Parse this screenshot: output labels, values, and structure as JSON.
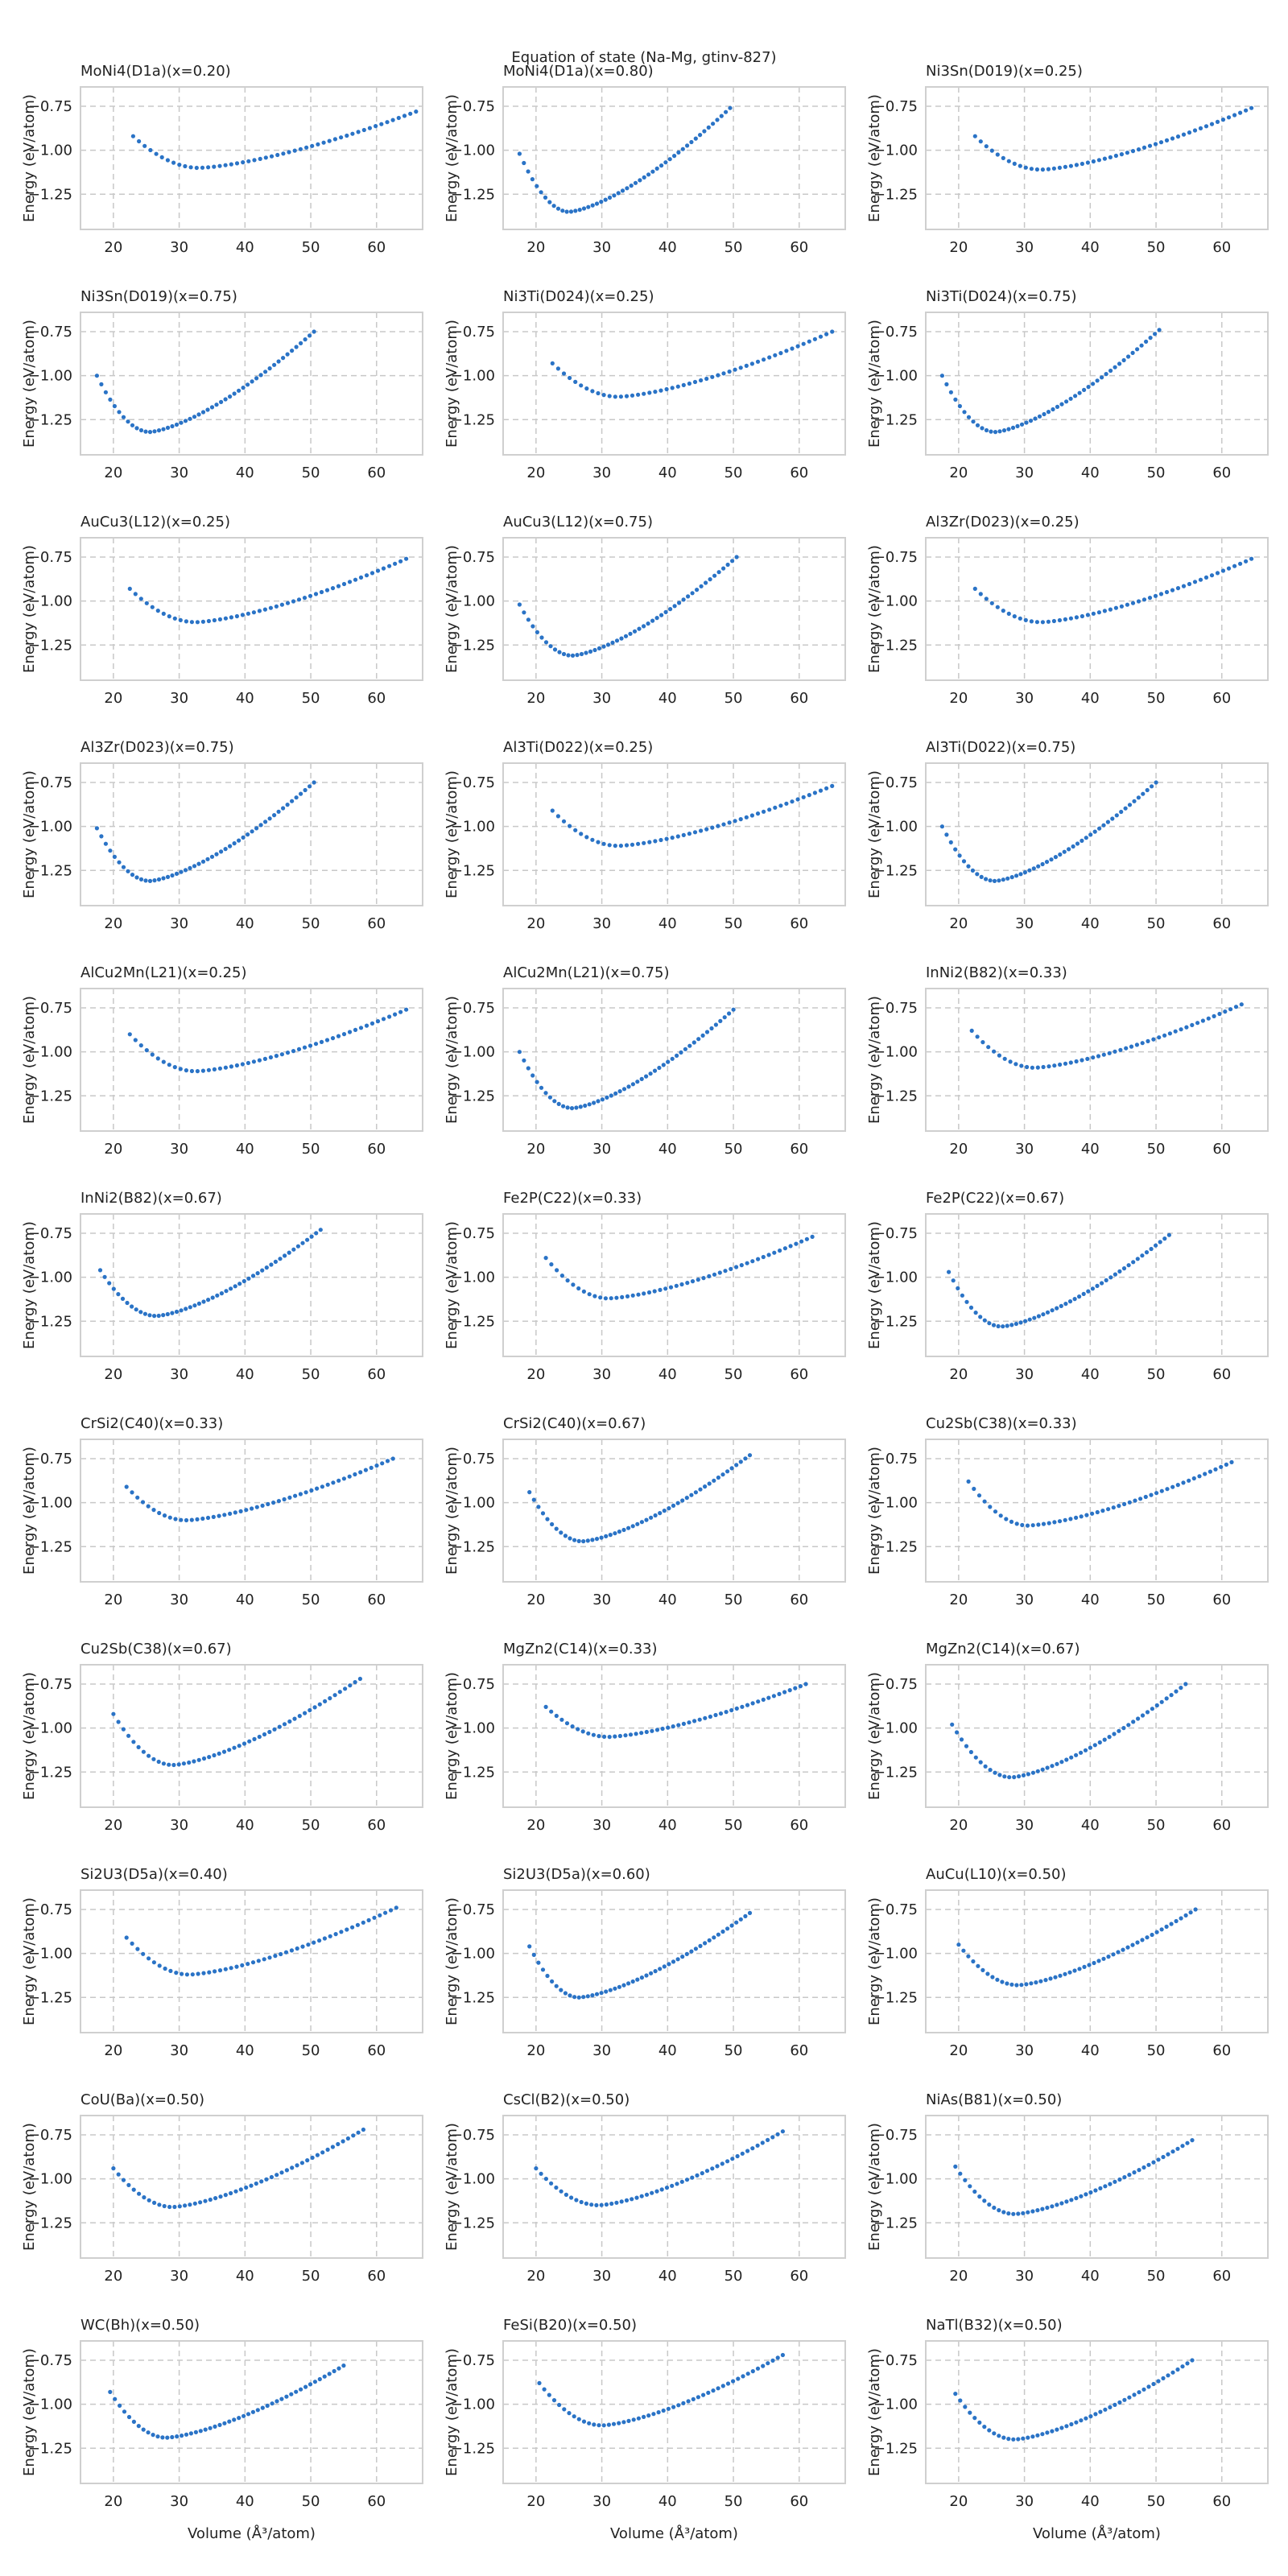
{
  "figure": {
    "title": "Equation of state (Na-Mg, gtinv-827)"
  },
  "chart_data": {
    "type": "scatter",
    "layout": "grid 11 rows x 3 columns",
    "series_color": "#2a73c6",
    "grid": true,
    "grid_style": "dashed",
    "xlabel": "Volume (Å³/atom)",
    "ylabel": "Energy (eV/atom)",
    "xlim": [
      15,
      67
    ],
    "ylim": [
      -1.45,
      -0.64
    ],
    "xticks": [
      20,
      30,
      40,
      50,
      60
    ],
    "yticks": [
      -0.75,
      -1.0,
      -1.25
    ],
    "xtick_labels": [
      "20",
      "30",
      "40",
      "50",
      "60"
    ],
    "ytick_labels": [
      "−0.75",
      "−1.00",
      "−1.25"
    ],
    "panels": [
      {
        "title": "MoNi4(D1a)(x=0.20)",
        "x_start": 23.0,
        "x_end": 66.0,
        "y_start": -0.92,
        "y_end": -0.78,
        "x_min": 33.0,
        "y_min": -1.1
      },
      {
        "title": "MoNi4(D1a)(x=0.80)",
        "x_start": 17.5,
        "x_end": 49.5,
        "y_start": -1.02,
        "y_end": -0.76,
        "x_min": 25.0,
        "y_min": -1.35
      },
      {
        "title": "Ni3Sn(D019)(x=0.25)",
        "x_start": 22.5,
        "x_end": 64.5,
        "y_start": -0.92,
        "y_end": -0.76,
        "x_min": 32.5,
        "y_min": -1.11
      },
      {
        "title": "Ni3Sn(D019)(x=0.75)",
        "x_start": 17.5,
        "x_end": 50.5,
        "y_start": -1.0,
        "y_end": -0.75,
        "x_min": 25.5,
        "y_min": -1.32
      },
      {
        "title": "Ni3Ti(D024)(x=0.25)",
        "x_start": 22.5,
        "x_end": 65.0,
        "y_start": -0.93,
        "y_end": -0.75,
        "x_min": 32.5,
        "y_min": -1.12
      },
      {
        "title": "Ni3Ti(D024)(x=0.75)",
        "x_start": 17.5,
        "x_end": 50.5,
        "y_start": -1.0,
        "y_end": -0.74,
        "x_min": 25.5,
        "y_min": -1.32
      },
      {
        "title": "AuCu3(L12)(x=0.25)",
        "x_start": 22.5,
        "x_end": 64.5,
        "y_start": -0.93,
        "y_end": -0.76,
        "x_min": 32.5,
        "y_min": -1.12
      },
      {
        "title": "AuCu3(L12)(x=0.75)",
        "x_start": 17.5,
        "x_end": 50.5,
        "y_start": -1.02,
        "y_end": -0.75,
        "x_min": 25.5,
        "y_min": -1.31
      },
      {
        "title": "Al3Zr(D023)(x=0.25)",
        "x_start": 22.5,
        "x_end": 64.5,
        "y_start": -0.93,
        "y_end": -0.76,
        "x_min": 32.5,
        "y_min": -1.12
      },
      {
        "title": "Al3Zr(D023)(x=0.75)",
        "x_start": 17.5,
        "x_end": 50.5,
        "y_start": -1.01,
        "y_end": -0.75,
        "x_min": 25.5,
        "y_min": -1.31
      },
      {
        "title": "Al3Ti(D022)(x=0.25)",
        "x_start": 22.5,
        "x_end": 65.0,
        "y_start": -0.91,
        "y_end": -0.77,
        "x_min": 32.5,
        "y_min": -1.11
      },
      {
        "title": "Al3Ti(D022)(x=0.75)",
        "x_start": 17.5,
        "x_end": 50.0,
        "y_start": -1.0,
        "y_end": -0.75,
        "x_min": 25.5,
        "y_min": -1.31
      },
      {
        "title": "AlCu2Mn(L21)(x=0.25)",
        "x_start": 22.5,
        "x_end": 64.5,
        "y_start": -0.9,
        "y_end": -0.76,
        "x_min": 32.5,
        "y_min": -1.11
      },
      {
        "title": "AlCu2Mn(L21)(x=0.75)",
        "x_start": 17.5,
        "x_end": 50.0,
        "y_start": -1.0,
        "y_end": -0.76,
        "x_min": 25.5,
        "y_min": -1.32
      },
      {
        "title": "InNi2(B82)(x=0.33)",
        "x_start": 22.0,
        "x_end": 63.0,
        "y_start": -0.88,
        "y_end": -0.73,
        "x_min": 31.5,
        "y_min": -1.09
      },
      {
        "title": "InNi2(B82)(x=0.67)",
        "x_start": 18.0,
        "x_end": 51.5,
        "y_start": -0.96,
        "y_end": -0.73,
        "x_min": 26.5,
        "y_min": -1.22
      },
      {
        "title": "Fe2P(C22)(x=0.33)",
        "x_start": 21.5,
        "x_end": 62.0,
        "y_start": -0.89,
        "y_end": -0.77,
        "x_min": 31.0,
        "y_min": -1.12
      },
      {
        "title": "Fe2P(C22)(x=0.67)",
        "x_start": 18.5,
        "x_end": 52.0,
        "y_start": -0.97,
        "y_end": -0.76,
        "x_min": 26.5,
        "y_min": -1.28
      },
      {
        "title": "CrSi2(C40)(x=0.33)",
        "x_start": 22.0,
        "x_end": 62.5,
        "y_start": -0.91,
        "y_end": -0.75,
        "x_min": 31.0,
        "y_min": -1.1
      },
      {
        "title": "CrSi2(C40)(x=0.67)",
        "x_start": 19.0,
        "x_end": 52.5,
        "y_start": -0.94,
        "y_end": -0.73,
        "x_min": 27.0,
        "y_min": -1.22
      },
      {
        "title": "Cu2Sb(C38)(x=0.33)",
        "x_start": 21.5,
        "x_end": 61.5,
        "y_start": -0.88,
        "y_end": -0.77,
        "x_min": 30.5,
        "y_min": -1.13
      },
      {
        "title": "Cu2Sb(C38)(x=0.67)",
        "x_start": 20.0,
        "x_end": 57.5,
        "y_start": -0.92,
        "y_end": -0.72,
        "x_min": 29.0,
        "y_min": -1.21
      },
      {
        "title": "MgZn2(C14)(x=0.33)",
        "x_start": 21.5,
        "x_end": 61.0,
        "y_start": -0.88,
        "y_end": -0.75,
        "x_min": 31.0,
        "y_min": -1.05
      },
      {
        "title": "MgZn2(C14)(x=0.67)",
        "x_start": 19.0,
        "x_end": 54.5,
        "y_start": -0.98,
        "y_end": -0.75,
        "x_min": 28.0,
        "y_min": -1.28
      },
      {
        "title": "Si2U3(D5a)(x=0.40)",
        "x_start": 22.0,
        "x_end": 63.0,
        "y_start": -0.91,
        "y_end": -0.74,
        "x_min": 31.5,
        "y_min": -1.12
      },
      {
        "title": "Si2U3(D5a)(x=0.60)",
        "x_start": 19.0,
        "x_end": 52.5,
        "y_start": -0.96,
        "y_end": -0.77,
        "x_min": 26.5,
        "y_min": -1.25
      },
      {
        "title": "AuCu(L10)(x=0.50)",
        "x_start": 20.0,
        "x_end": 56.0,
        "y_start": -0.95,
        "y_end": -0.75,
        "x_min": 29.0,
        "y_min": -1.18
      },
      {
        "title": "CoU(Ba)(x=0.50)",
        "x_start": 20.0,
        "x_end": 58.0,
        "y_start": -0.94,
        "y_end": -0.72,
        "x_min": 29.0,
        "y_min": -1.16
      },
      {
        "title": "CsCl(B2)(x=0.50)",
        "x_start": 20.0,
        "x_end": 57.5,
        "y_start": -0.94,
        "y_end": -0.73,
        "x_min": 29.5,
        "y_min": -1.15
      },
      {
        "title": "NiAs(B81)(x=0.50)",
        "x_start": 19.5,
        "x_end": 55.5,
        "y_start": -0.93,
        "y_end": -0.78,
        "x_min": 28.5,
        "y_min": -1.2
      },
      {
        "title": "WC(Bh)(x=0.50)",
        "x_start": 19.5,
        "x_end": 55.0,
        "y_start": -0.93,
        "y_end": -0.78,
        "x_min": 28.0,
        "y_min": -1.19
      },
      {
        "title": "FeSi(B20)(x=0.50)",
        "x_start": 20.5,
        "x_end": 57.5,
        "y_start": -0.88,
        "y_end": -0.72,
        "x_min": 30.0,
        "y_min": -1.12
      },
      {
        "title": "NaTl(B32)(x=0.50)",
        "x_start": 19.5,
        "x_end": 55.5,
        "y_start": -0.94,
        "y_end": -0.75,
        "x_min": 28.5,
        "y_min": -1.2
      }
    ]
  }
}
